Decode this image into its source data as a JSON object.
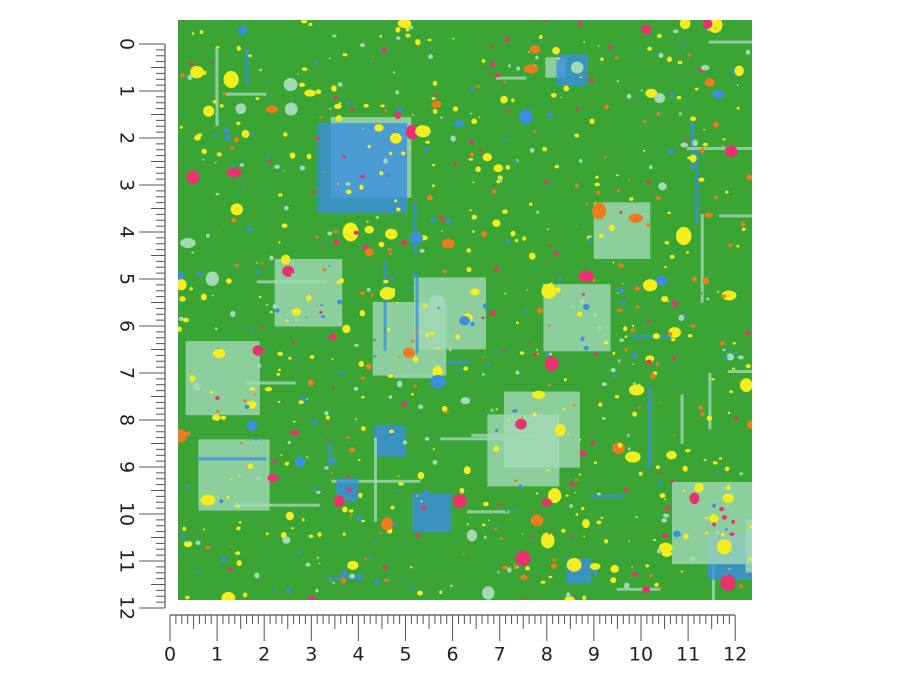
{
  "vertical_ruler": {
    "labels": [
      0,
      1,
      2,
      3,
      4,
      5,
      6,
      7,
      8,
      9,
      10,
      11,
      12
    ]
  },
  "horizontal_ruler": {
    "labels": [
      0,
      1,
      2,
      3,
      4,
      5,
      6,
      7,
      8,
      9,
      10,
      11,
      12
    ]
  }
}
